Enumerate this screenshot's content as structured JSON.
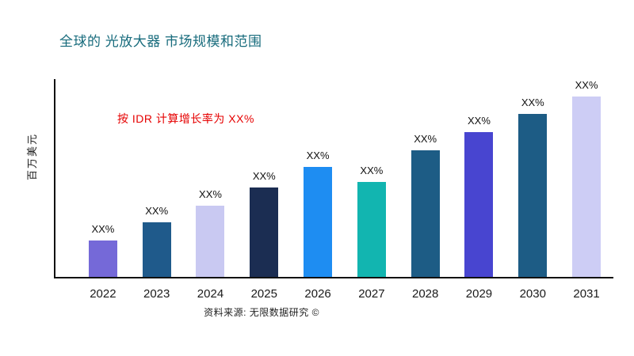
{
  "page": {
    "annotation": "按 IDR 计算增长率为 XX%",
    "source": "资料来源: 无限数据研究 ©"
  },
  "chart_data": {
    "type": "bar",
    "title": "全球的 光放大器 市场规模和范围",
    "xlabel": "",
    "ylabel": "百万美元",
    "categories": [
      "2022",
      "2023",
      "2024",
      "2025",
      "2026",
      "2027",
      "2028",
      "2029",
      "2030",
      "2031"
    ],
    "values": [
      20,
      30,
      39,
      49,
      60,
      52,
      69,
      79,
      89,
      100
    ],
    "value_labels": [
      "XX%",
      "XX%",
      "XX%",
      "XX%",
      "XX%",
      "XX%",
      "XX%",
      "XX%",
      "XX%",
      "XX%"
    ],
    "bar_colors": [
      "#7569d8",
      "#1f5a8b",
      "#c9c9f2",
      "#1b2d52",
      "#1e8df2",
      "#12b5b0",
      "#1d5c85",
      "#4845d0",
      "#1d5c85",
      "#cdcdf5"
    ],
    "ylim": [
      0,
      108
    ],
    "grid": false,
    "legend": false,
    "title_color": "#176b7c",
    "annotation_color": "#e60000",
    "axis_color": "#111111"
  }
}
